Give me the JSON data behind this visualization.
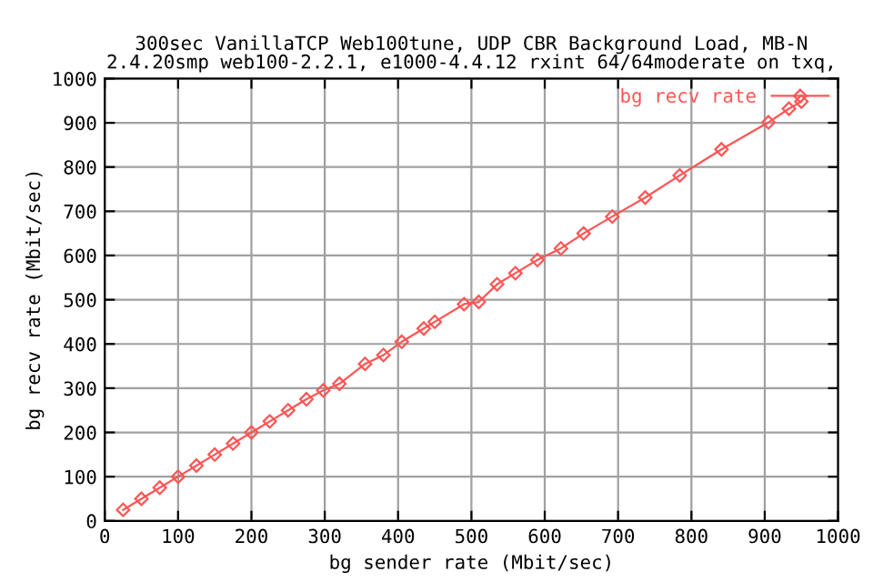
{
  "chart_data": {
    "type": "line",
    "title": "300sec VanillaTCP Web100tune, UDP CBR Background Load, MB-N\n2.4.20smp web100-2.2.1, e1000-4.4.12 rxint 64/64moderate on txq,",
    "xlabel": "bg sender rate (Mbit/sec)",
    "ylabel": "bg recv rate (Mbit/sec)",
    "series": [
      {
        "name": "bg recv rate",
        "color": "#ff5555",
        "x": [
          25,
          50,
          75,
          100,
          125,
          150,
          175,
          200,
          225,
          250,
          275,
          298,
          320,
          355,
          380,
          405,
          435,
          450,
          490,
          510,
          535,
          560,
          590,
          622,
          653,
          692,
          737,
          784,
          841,
          905,
          933,
          950
        ],
        "values": [
          25,
          50,
          75,
          100,
          125,
          150,
          175,
          200,
          225,
          250,
          275,
          295,
          310,
          355,
          375,
          405,
          435,
          450,
          490,
          495,
          535,
          560,
          590,
          616,
          650,
          688,
          731,
          781,
          840,
          901,
          932,
          948
        ]
      }
    ],
    "xlim": [
      0,
      1000
    ],
    "ylim": [
      0,
      1000
    ],
    "xticks": [
      0,
      100,
      200,
      300,
      400,
      500,
      600,
      700,
      800,
      900,
      1000
    ],
    "yticks": [
      0,
      100,
      200,
      300,
      400,
      500,
      600,
      700,
      800,
      900,
      1000
    ],
    "grid": true,
    "legend": "top right",
    "marker": "diamond",
    "line_style": "solid"
  }
}
